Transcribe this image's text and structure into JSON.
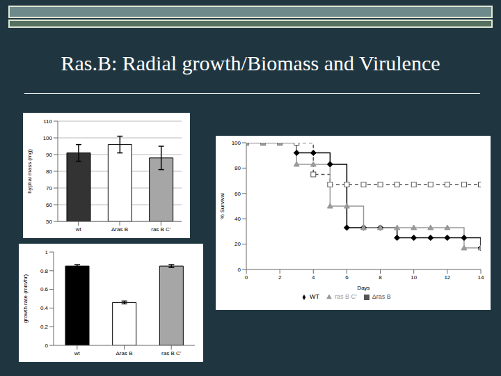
{
  "title": "Ras.B: Radial growth/Biomass and Virulence",
  "chart_data": [
    {
      "type": "bar",
      "y_label": "hyphal mass (mg)",
      "categories": [
        "wt",
        "Δras B",
        "ras B C'"
      ],
      "values": [
        91,
        96,
        88
      ],
      "errors": [
        5,
        5,
        7
      ],
      "colors": [
        "#333333",
        "#ffffff",
        "#a6a6a6"
      ],
      "ylim": [
        50,
        110
      ],
      "yticks": [
        50,
        60,
        70,
        80,
        90,
        100,
        110
      ],
      "grid": true
    },
    {
      "type": "bar",
      "y_label": "growth rate (mm/hr)",
      "categories": [
        "wt",
        "Δras B",
        "ras B C'"
      ],
      "values": [
        0.85,
        0.46,
        0.85
      ],
      "errors": [
        0.015,
        0.015,
        0.015
      ],
      "colors": [
        "#000000",
        "#ffffff",
        "#a6a6a6"
      ],
      "ylim": [
        0,
        1
      ],
      "yticks": [
        0,
        0.2,
        0.4,
        0.6,
        0.8,
        1
      ],
      "grid": false
    },
    {
      "type": "line",
      "x_label": "Days",
      "y_label": "% Survival",
      "x": [
        0,
        1,
        2,
        3,
        4,
        5,
        6,
        7,
        8,
        9,
        10,
        11,
        12,
        13,
        14
      ],
      "xlim": [
        0,
        14
      ],
      "xticks": [
        0,
        2,
        4,
        6,
        8,
        10,
        12,
        14
      ],
      "ylim": [
        0,
        100
      ],
      "yticks": [
        0,
        20,
        40,
        60,
        80,
        100
      ],
      "grid": false,
      "legend": "bottom",
      "series": [
        {
          "name": "WT",
          "color": "#000000",
          "marker": "diamond",
          "line_style": "solid",
          "values": [
            100,
            100,
            100,
            92,
            92,
            83,
            33,
            33,
            33,
            25,
            25,
            25,
            25,
            25,
            17
          ]
        },
        {
          "name": "Δras B",
          "color": "#555555",
          "marker": "square",
          "line_style": "dashed",
          "values": [
            100,
            100,
            100,
            100,
            75,
            67,
            67,
            67,
            67,
            67,
            67,
            67,
            67,
            67,
            67
          ]
        },
        {
          "name": "ras B C'",
          "color": "#999999",
          "marker": "triangle",
          "line_style": "solid",
          "values": [
            100,
            100,
            100,
            83,
            83,
            50,
            50,
            33,
            33,
            33,
            33,
            33,
            33,
            17,
            17
          ]
        }
      ]
    }
  ]
}
